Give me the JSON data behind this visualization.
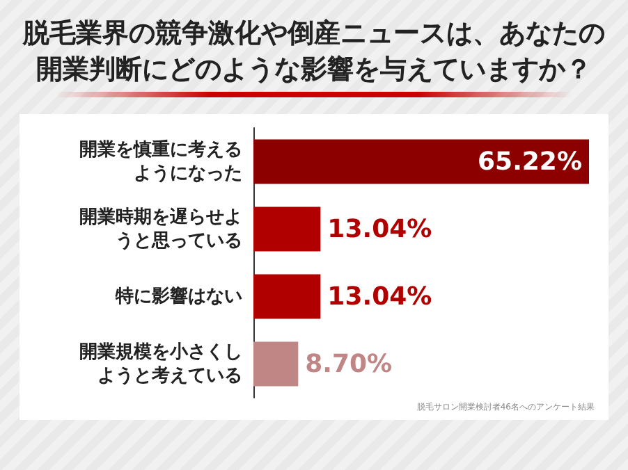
{
  "chart_data": {
    "type": "bar",
    "orientation": "horizontal",
    "title": "脱毛業界の競争激化や倒産ニュースは、あなたの開業判断にどのような影響を与えていますか？",
    "categories": [
      "開業を慎重に考えるようになった",
      "開業時期を遅らせようと思っている",
      "特に影響はない",
      "開業規模を小さくしようと考えている"
    ],
    "values": [
      65.22,
      13.04,
      13.04,
      8.7
    ],
    "value_labels": [
      "65.22%",
      "13.04%",
      "13.04%",
      "8.70%"
    ],
    "colors": [
      "#8c0000",
      "#b00000",
      "#b00000",
      "#c08585"
    ],
    "annotations": [
      "脱毛サロン開業検討者46名へのアンケート結果"
    ]
  }
}
